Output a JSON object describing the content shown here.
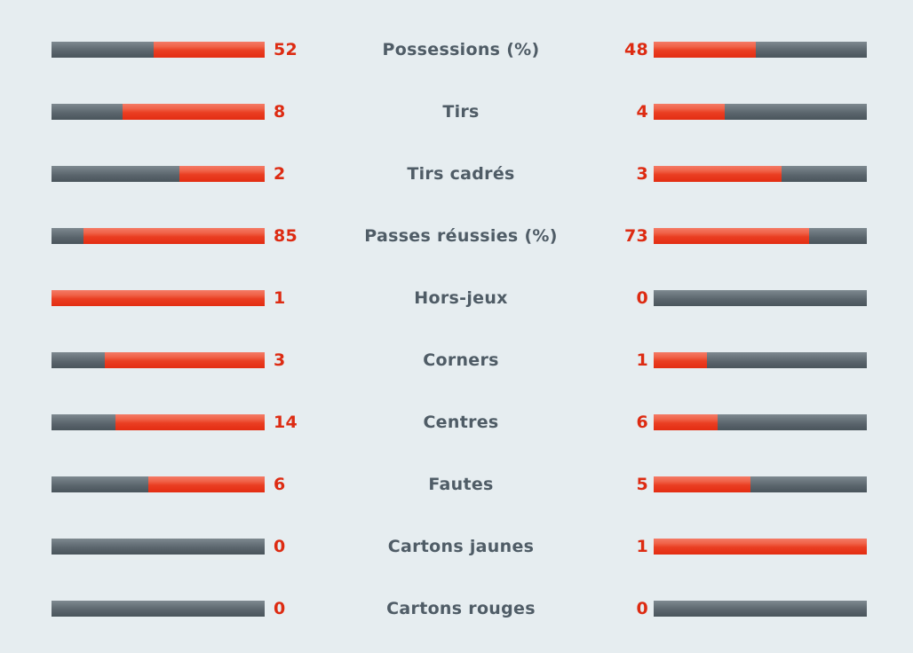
{
  "stats": [
    {
      "label": "Possessions (%)",
      "home": "52",
      "away": "48",
      "home_fill": 0.52,
      "away_fill": 0.48
    },
    {
      "label": "Tirs",
      "home": "8",
      "away": "4",
      "home_fill": 0.667,
      "away_fill": 0.333
    },
    {
      "label": "Tirs cadrés",
      "home": "2",
      "away": "3",
      "home_fill": 0.4,
      "away_fill": 0.6
    },
    {
      "label": "Passes réussies (%)",
      "home": "85",
      "away": "73",
      "home_fill": 0.85,
      "away_fill": 0.73
    },
    {
      "label": "Hors-jeux",
      "home": "1",
      "away": "0",
      "home_fill": 1.0,
      "away_fill": 0.0
    },
    {
      "label": "Corners",
      "home": "3",
      "away": "1",
      "home_fill": 0.75,
      "away_fill": 0.25
    },
    {
      "label": "Centres",
      "home": "14",
      "away": "6",
      "home_fill": 0.7,
      "away_fill": 0.3
    },
    {
      "label": "Fautes",
      "home": "6",
      "away": "5",
      "home_fill": 0.545,
      "away_fill": 0.455
    },
    {
      "label": "Cartons jaunes",
      "home": "0",
      "away": "1",
      "home_fill": 0.0,
      "away_fill": 1.0
    },
    {
      "label": "Cartons rouges",
      "home": "0",
      "away": "0",
      "home_fill": 0.0,
      "away_fill": 0.0
    }
  ],
  "colors": {
    "background": "#e6edf0",
    "accent": "#e32d12",
    "track": "#5d686f",
    "label": "#4f5c66"
  }
}
